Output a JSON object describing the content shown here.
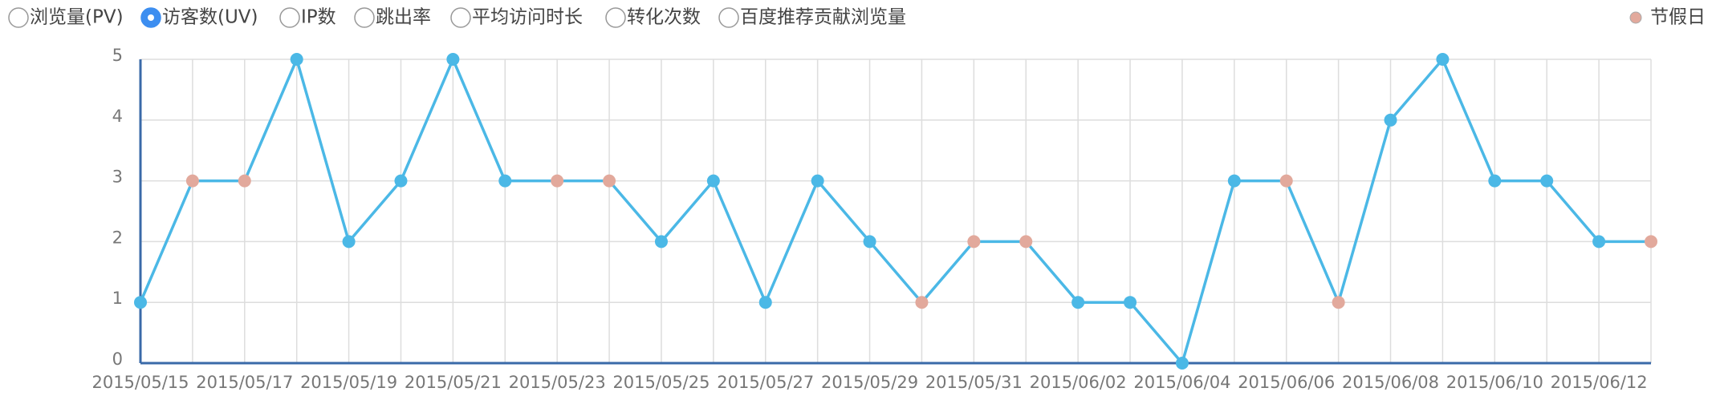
{
  "metric_options": {
    "options": [
      "浏览量(PV)",
      "访客数(UV)",
      "IP数",
      "跳出率",
      "平均访问时长",
      "转化次数",
      "百度推荐贡献浏览量"
    ],
    "selected": 1
  },
  "chart_data": {
    "type": "line",
    "categories": [
      "2015/05/15",
      null,
      "2015/05/17",
      null,
      "2015/05/19",
      null,
      "2015/05/21",
      null,
      "2015/05/23",
      null,
      "2015/05/25",
      null,
      "2015/05/27",
      null,
      "2015/05/29",
      null,
      "2015/05/31",
      null,
      "2015/06/02",
      null,
      "2015/06/04",
      null,
      "2015/06/06",
      null,
      "2015/06/08",
      null,
      "2015/06/10",
      null,
      "2015/06/12",
      null
    ],
    "series": [
      {
        "name": "访客数(UV)",
        "color": "#4bb8e6",
        "values": [
          1,
          3,
          3,
          5,
          2,
          3,
          5,
          3,
          3,
          3,
          2,
          3,
          1,
          3,
          2,
          1,
          2,
          2,
          1,
          1,
          0,
          3,
          3,
          1,
          4,
          5,
          3,
          3,
          2,
          2
        ]
      }
    ],
    "holiday": [
      false,
      true,
      true,
      false,
      false,
      false,
      false,
      false,
      true,
      true,
      false,
      false,
      false,
      false,
      false,
      true,
      true,
      true,
      false,
      false,
      false,
      false,
      true,
      true,
      false,
      false,
      false,
      false,
      false,
      true
    ],
    "holiday_legend": {
      "name": "节假日",
      "color": "#e2a99c"
    },
    "ylim": [
      0,
      5
    ],
    "yticks": [
      0,
      1,
      2,
      3,
      4,
      5
    ],
    "grid": true
  }
}
